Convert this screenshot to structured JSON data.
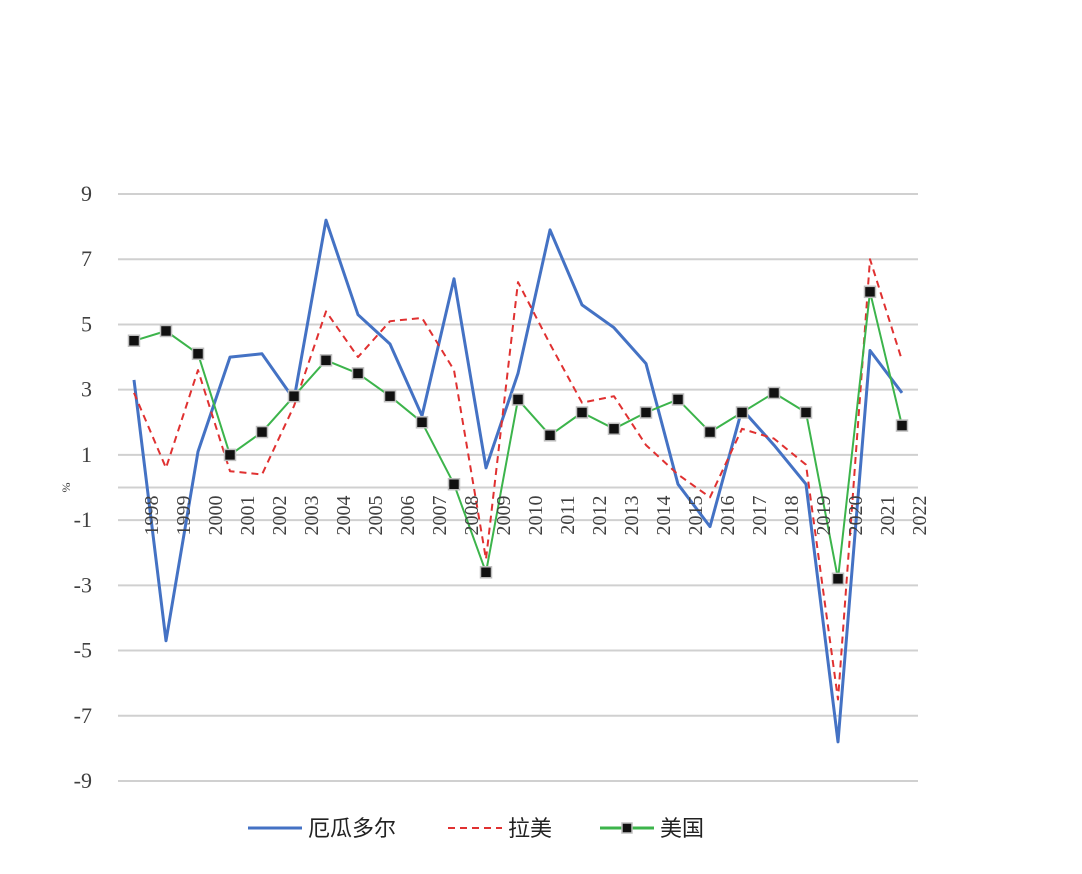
{
  "chart_data": {
    "type": "line",
    "title": "",
    "xlabel": "",
    "ylabel": "%",
    "ylim": [
      -9,
      9
    ],
    "yticks": [
      9,
      7,
      5,
      3,
      1,
      -1,
      -3,
      -5,
      -7,
      -9
    ],
    "grid": true,
    "legend_position": "bottom",
    "categories": [
      "1998",
      "1999",
      "2000",
      "2001",
      "2002",
      "2003",
      "2004",
      "2005",
      "2006",
      "2007",
      "2008",
      "2009",
      "2010",
      "2011",
      "2012",
      "2013",
      "2014",
      "2015",
      "2016",
      "2017",
      "2018",
      "2019",
      "2020",
      "2021",
      "2022"
    ],
    "series": [
      {
        "name": "厄瓜多尔",
        "color": "#4472c4",
        "style": "solid",
        "marker": "none",
        "values": [
          3.3,
          -4.7,
          1.1,
          4.0,
          4.1,
          2.7,
          8.2,
          5.3,
          4.4,
          2.2,
          6.4,
          0.6,
          3.5,
          7.9,
          5.6,
          4.9,
          3.8,
          0.1,
          -1.2,
          2.4,
          1.3,
          0.1,
          -7.8,
          4.2,
          2.9
        ]
      },
      {
        "name": "拉美",
        "color": "#e03131",
        "style": "dashed",
        "marker": "none",
        "values": [
          2.9,
          0.6,
          3.6,
          0.5,
          0.4,
          2.5,
          5.4,
          4.0,
          5.1,
          5.2,
          3.6,
          -2.2,
          6.3,
          4.4,
          2.6,
          2.8,
          1.3,
          0.4,
          -0.3,
          1.8,
          1.5,
          0.7,
          -6.5,
          7.0,
          3.9
        ]
      },
      {
        "name": "美国",
        "color": "#3cb44b",
        "style": "solid",
        "marker": "square",
        "values": [
          4.5,
          4.8,
          4.1,
          1.0,
          1.7,
          2.8,
          3.9,
          3.5,
          2.8,
          2.0,
          0.1,
          -2.6,
          2.7,
          1.6,
          2.3,
          1.8,
          2.3,
          2.7,
          1.7,
          2.3,
          2.9,
          2.3,
          -2.8,
          6.0,
          1.9
        ]
      }
    ]
  }
}
